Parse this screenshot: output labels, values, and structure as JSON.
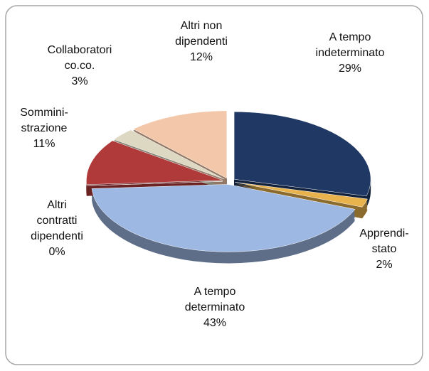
{
  "chart_data": {
    "type": "pie",
    "categories": [
      "A tempo\nindeterminato",
      "Apprendi-\nstato",
      "A tempo\ndeterminato",
      "Altri\ncontratti\ndipendenti",
      "Sommini-\nstrazione",
      "Collaboratori\nco.co.",
      "Altri non\ndipendenti"
    ],
    "values": [
      29,
      2,
      43,
      0,
      11,
      3,
      12
    ],
    "value_labels": [
      "29%",
      "2%",
      "43%",
      "0%",
      "11%",
      "3%",
      "12%"
    ],
    "colors": [
      "#1f3864",
      "#e8b24c",
      "#9db8e2",
      "#76923c",
      "#b0393a",
      "#ddd8c2",
      "#f3c7a9"
    ]
  }
}
